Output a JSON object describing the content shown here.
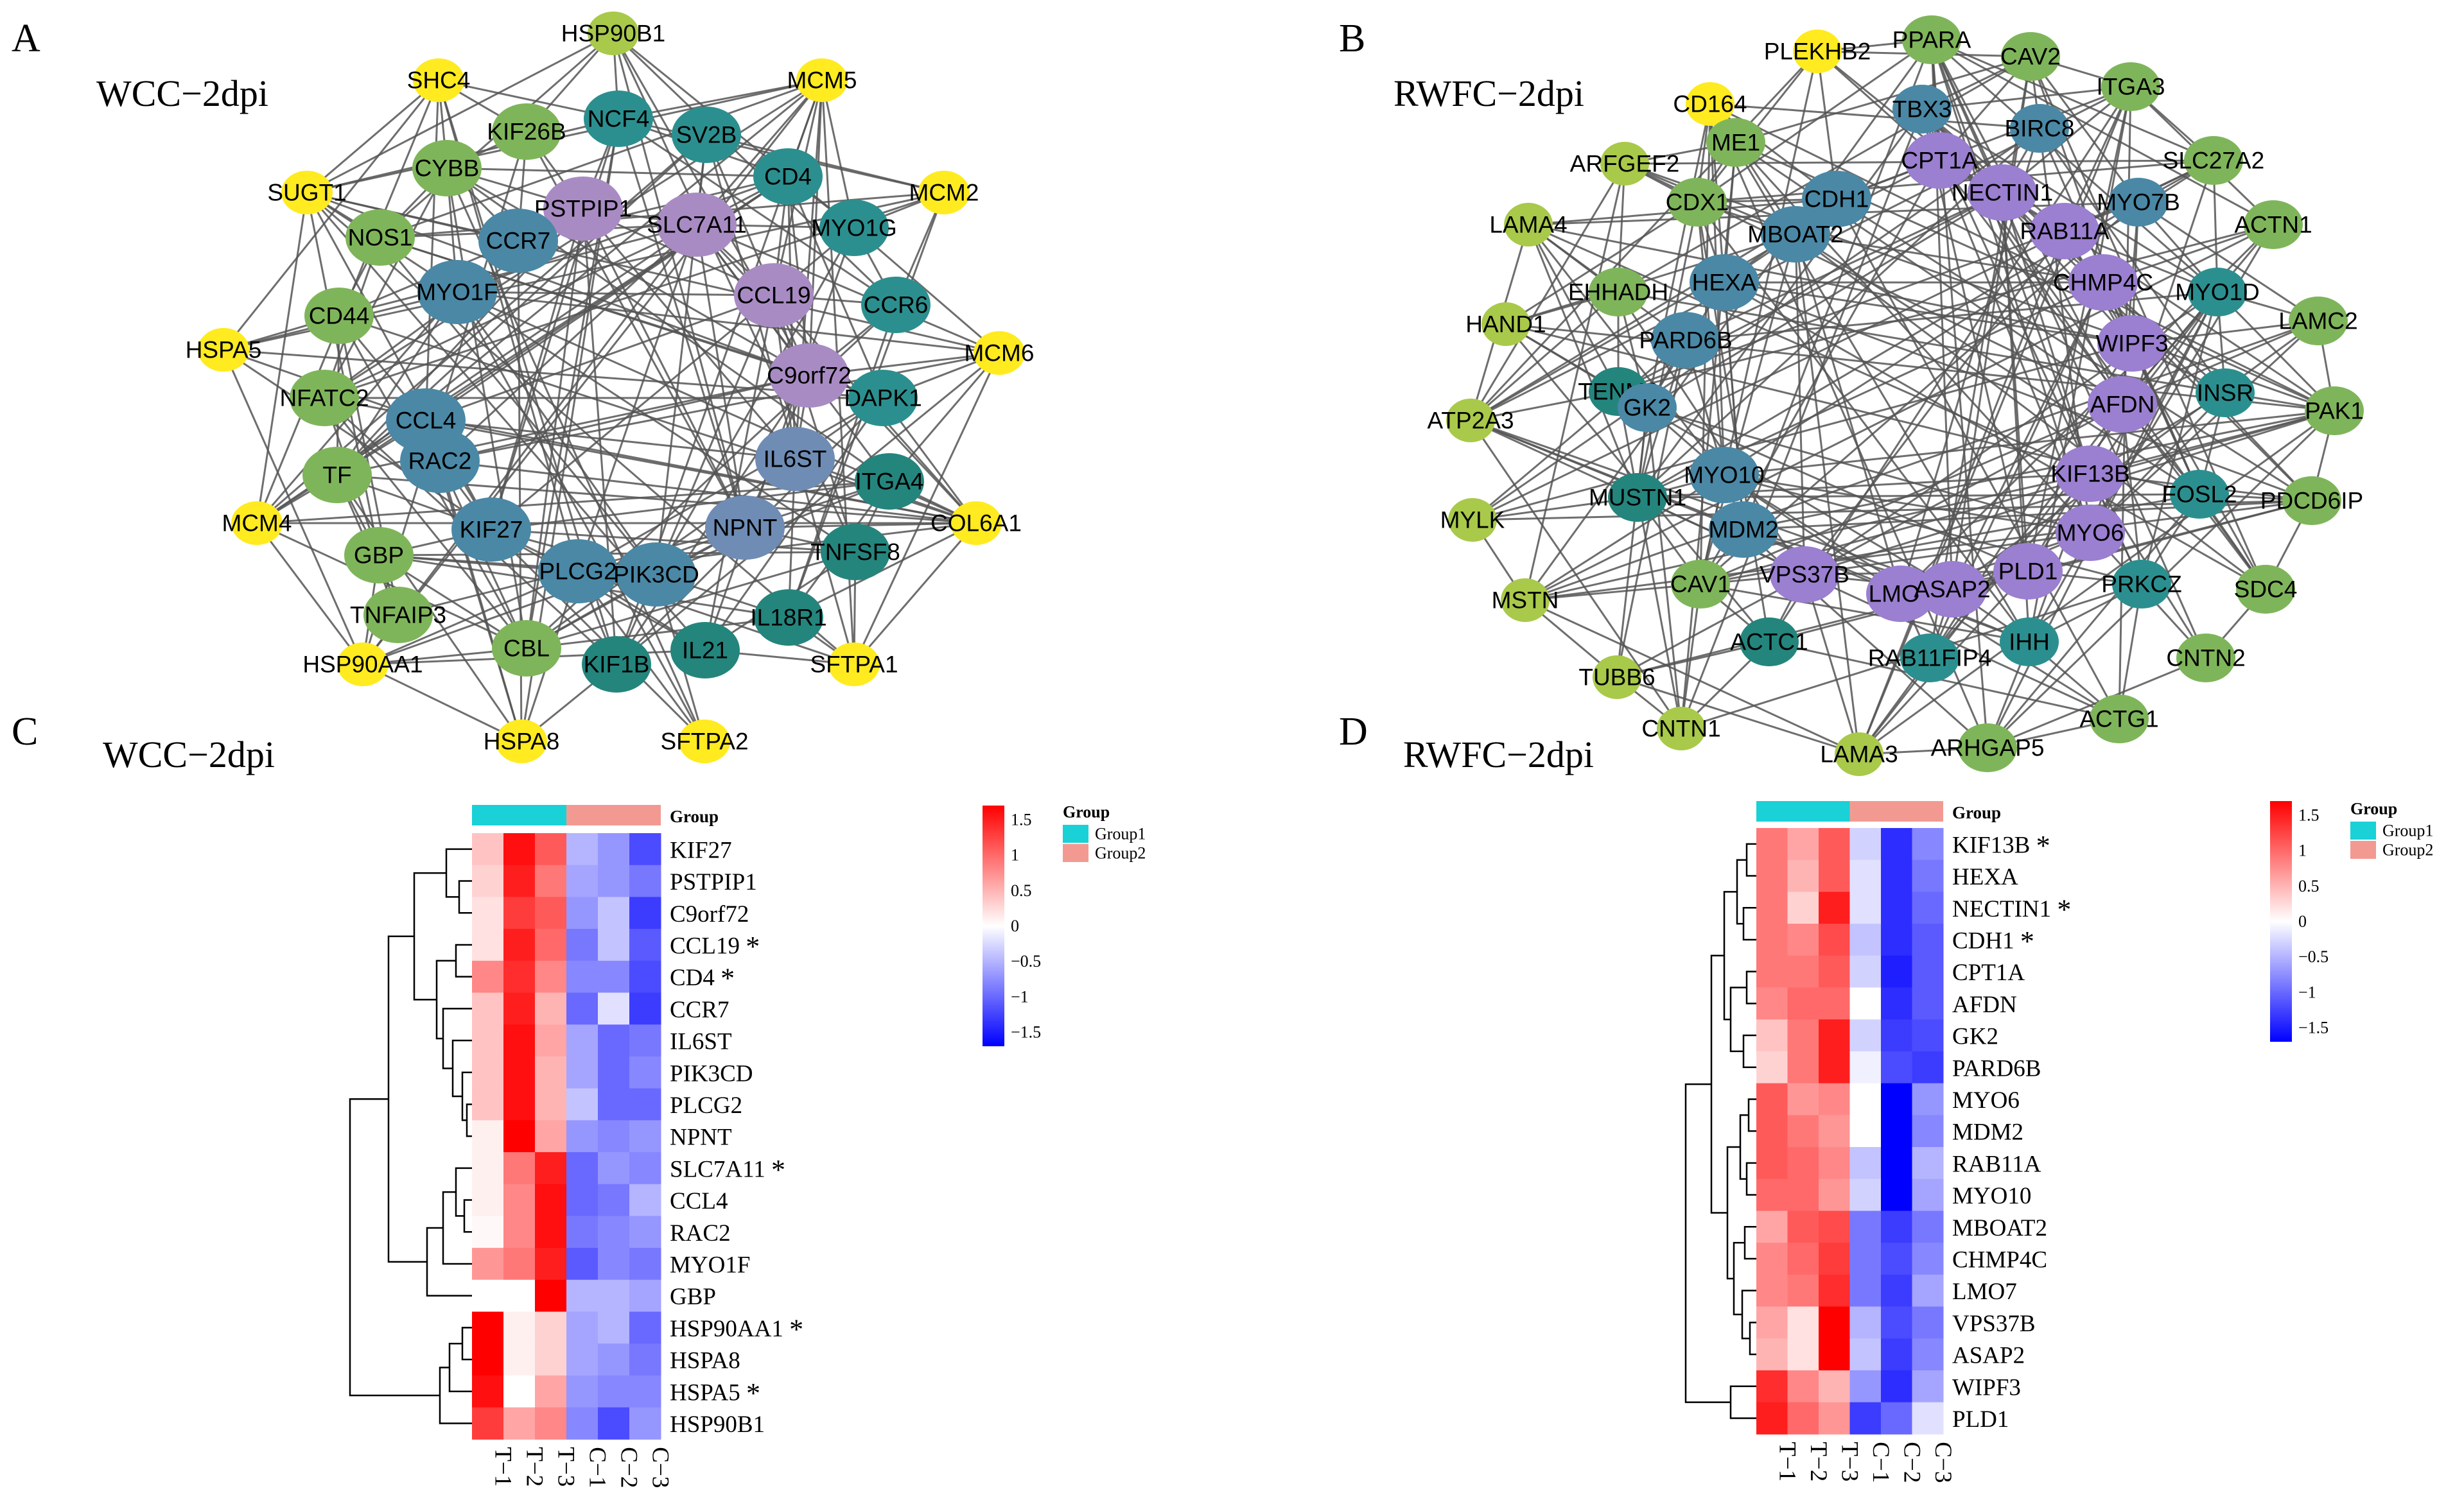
{
  "colors": {
    "yellow": "#ffeb1f",
    "lightgreen": "#7fb55a",
    "olive": "#a9c94a",
    "teal": "#2c8f8f",
    "steelblue": "#4a88a6",
    "slateblue": "#6f8cb4",
    "lavender": "#a98bc4",
    "purple": "#9b7fd1",
    "darkteal": "#24857d",
    "edge": "#555555",
    "group1": "#19d1d6",
    "group2": "#f29a92",
    "hm_high": "#ff0000",
    "hm_mid": "#ffffff",
    "hm_low": "#0000ff"
  },
  "panelA": {
    "letter": "A",
    "title": "WCC−2dpi",
    "nodes": [
      {
        "label": "HSP90B1",
        "c": "olive"
      },
      {
        "label": "SHC4",
        "c": "yellow"
      },
      {
        "label": "MCM5",
        "c": "yellow"
      },
      {
        "label": "KIF26B",
        "c": "lightgreen"
      },
      {
        "label": "NCF4",
        "c": "teal"
      },
      {
        "label": "SV2B",
        "c": "teal"
      },
      {
        "label": "SUGT1",
        "c": "yellow"
      },
      {
        "label": "CYBB",
        "c": "lightgreen"
      },
      {
        "label": "CD4",
        "c": "teal"
      },
      {
        "label": "MCM2",
        "c": "yellow"
      },
      {
        "label": "PSTPIP1",
        "c": "lavender"
      },
      {
        "label": "NOS1",
        "c": "lightgreen"
      },
      {
        "label": "CCR7",
        "c": "steelblue"
      },
      {
        "label": "SLC7A11",
        "c": "lavender"
      },
      {
        "label": "MYO1G",
        "c": "teal"
      },
      {
        "label": "MYO1F",
        "c": "steelblue"
      },
      {
        "label": "CCL19",
        "c": "lavender"
      },
      {
        "label": "CCR6",
        "c": "teal"
      },
      {
        "label": "CD44",
        "c": "lightgreen"
      },
      {
        "label": "HSPA5",
        "c": "yellow"
      },
      {
        "label": "MCM6",
        "c": "yellow"
      },
      {
        "label": "C9orf72",
        "c": "lavender"
      },
      {
        "label": "NFATC2",
        "c": "lightgreen"
      },
      {
        "label": "CCL4",
        "c": "steelblue"
      },
      {
        "label": "DAPK1",
        "c": "teal"
      },
      {
        "label": "IL6ST",
        "c": "slateblue"
      },
      {
        "label": "RAC2",
        "c": "steelblue"
      },
      {
        "label": "TF",
        "c": "lightgreen"
      },
      {
        "label": "ITGA4",
        "c": "darkteal"
      },
      {
        "label": "MCM4",
        "c": "yellow"
      },
      {
        "label": "COL6A1",
        "c": "yellow"
      },
      {
        "label": "NPNT",
        "c": "slateblue"
      },
      {
        "label": "KIF27",
        "c": "steelblue"
      },
      {
        "label": "GBP",
        "c": "lightgreen"
      },
      {
        "label": "TNFSF8",
        "c": "darkteal"
      },
      {
        "label": "PLCG2",
        "c": "steelblue"
      },
      {
        "label": "PIK3CD",
        "c": "steelblue"
      },
      {
        "label": "TNFAIP3",
        "c": "lightgreen"
      },
      {
        "label": "IL18R1",
        "c": "darkteal"
      },
      {
        "label": "CBL",
        "c": "lightgreen"
      },
      {
        "label": "KIF1B",
        "c": "darkteal"
      },
      {
        "label": "IL21",
        "c": "darkteal"
      },
      {
        "label": "HSP90AA1",
        "c": "yellow"
      },
      {
        "label": "SFTPA1",
        "c": "yellow"
      },
      {
        "label": "HSPA8",
        "c": "yellow"
      },
      {
        "label": "SFTPA2",
        "c": "yellow"
      }
    ]
  },
  "panelB": {
    "letter": "B",
    "title": "RWFC−2dpi",
    "nodes": [
      {
        "label": "PPARA",
        "c": "lightgreen"
      },
      {
        "label": "PLEKHB2",
        "c": "yellow"
      },
      {
        "label": "CAV2",
        "c": "lightgreen"
      },
      {
        "label": "CD164",
        "c": "yellow"
      },
      {
        "label": "TBX3",
        "c": "steelblue"
      },
      {
        "label": "ITGA3",
        "c": "lightgreen"
      },
      {
        "label": "BIRC8",
        "c": "steelblue"
      },
      {
        "label": "ARFGEF2",
        "c": "olive"
      },
      {
        "label": "ME1",
        "c": "lightgreen"
      },
      {
        "label": "CPT1A",
        "c": "purple"
      },
      {
        "label": "SLC27A2",
        "c": "lightgreen"
      },
      {
        "label": "NECTIN1",
        "c": "purple"
      },
      {
        "label": "CDX1",
        "c": "lightgreen"
      },
      {
        "label": "CDH1",
        "c": "steelblue"
      },
      {
        "label": "MYO7B",
        "c": "steelblue"
      },
      {
        "label": "LAMA4",
        "c": "olive"
      },
      {
        "label": "MBOAT2",
        "c": "steelblue"
      },
      {
        "label": "RAB11A",
        "c": "purple"
      },
      {
        "label": "ACTN1",
        "c": "lightgreen"
      },
      {
        "label": "CHMP4C",
        "c": "purple"
      },
      {
        "label": "EHHADH",
        "c": "lightgreen"
      },
      {
        "label": "HEXA",
        "c": "steelblue"
      },
      {
        "label": "MYO1D",
        "c": "teal"
      },
      {
        "label": "HAND1",
        "c": "olive"
      },
      {
        "label": "LAMC2",
        "c": "lightgreen"
      },
      {
        "label": "PARD6B",
        "c": "steelblue"
      },
      {
        "label": "WIPF3",
        "c": "purple"
      },
      {
        "label": "TENM2",
        "c": "darkteal"
      },
      {
        "label": "INSR",
        "c": "teal"
      },
      {
        "label": "GK2",
        "c": "steelblue"
      },
      {
        "label": "AFDN",
        "c": "purple"
      },
      {
        "label": "ATP2A3",
        "c": "olive"
      },
      {
        "label": "PAK1",
        "c": "lightgreen"
      },
      {
        "label": "KIF13B",
        "c": "purple"
      },
      {
        "label": "MYO10",
        "c": "steelblue"
      },
      {
        "label": "MUSTN1",
        "c": "darkteal"
      },
      {
        "label": "FOSL2",
        "c": "teal"
      },
      {
        "label": "PDCD6IP",
        "c": "lightgreen"
      },
      {
        "label": "MYLK",
        "c": "olive"
      },
      {
        "label": "MDM2",
        "c": "steelblue"
      },
      {
        "label": "MYO6",
        "c": "purple"
      },
      {
        "label": "VPS37B",
        "c": "purple"
      },
      {
        "label": "PLD1",
        "c": "purple"
      },
      {
        "label": "LMO7",
        "c": "purple"
      },
      {
        "label": "ASAP2",
        "c": "purple"
      },
      {
        "label": "PRKCZ",
        "c": "teal"
      },
      {
        "label": "CAV1",
        "c": "lightgreen"
      },
      {
        "label": "MSTN",
        "c": "olive"
      },
      {
        "label": "SDC4",
        "c": "lightgreen"
      },
      {
        "label": "ACTC1",
        "c": "darkteal"
      },
      {
        "label": "IHH",
        "c": "teal"
      },
      {
        "label": "RAB11FIP4",
        "c": "teal"
      },
      {
        "label": "TUBB6",
        "c": "olive"
      },
      {
        "label": "CNTN2",
        "c": "lightgreen"
      },
      {
        "label": "CNTN1",
        "c": "olive"
      },
      {
        "label": "ACTG1",
        "c": "lightgreen"
      },
      {
        "label": "LAMA3",
        "c": "olive"
      },
      {
        "label": "ARHGAP5",
        "c": "lightgreen"
      }
    ]
  },
  "chart_data": [
    {
      "type": "heatmap",
      "panel": "C",
      "title": "WCC−2dpi",
      "columns": [
        "T−1",
        "T−2",
        "T−3",
        "C−1",
        "C−2",
        "C−3"
      ],
      "column_groups": [
        "Group1",
        "Group1",
        "Group1",
        "Group2",
        "Group2",
        "Group2"
      ],
      "annotation_label": "Group",
      "legend": {
        "title": "Group",
        "entries": [
          "Group1",
          "Group2"
        ]
      },
      "colorbar": {
        "ticks": [
          "1.5",
          "1",
          "0.5",
          "0",
          "−0.5",
          "−1",
          "−1.5"
        ],
        "range": [
          -1.7,
          1.7
        ]
      },
      "rows": [
        {
          "gene": "KIF27",
          "star": "",
          "values": [
            0.4,
            1.6,
            1.1,
            -0.5,
            -0.7,
            -1.2
          ]
        },
        {
          "gene": "PSTPIP1",
          "star": "",
          "values": [
            0.3,
            1.5,
            0.9,
            -0.6,
            -0.7,
            -0.9
          ]
        },
        {
          "gene": "C9orf72",
          "star": "",
          "values": [
            0.2,
            1.3,
            1.1,
            -0.7,
            -0.4,
            -1.3
          ]
        },
        {
          "gene": "CCL19",
          "star": "*",
          "values": [
            0.2,
            1.5,
            1.0,
            -0.9,
            -0.4,
            -1.1
          ]
        },
        {
          "gene": "CD4",
          "star": "*",
          "values": [
            0.8,
            1.4,
            0.8,
            -0.8,
            -0.8,
            -1.2
          ]
        },
        {
          "gene": "CCR7",
          "star": "",
          "values": [
            0.4,
            1.5,
            0.5,
            -1.0,
            -0.2,
            -1.3
          ]
        },
        {
          "gene": "IL6ST",
          "star": "",
          "values": [
            0.4,
            1.6,
            0.6,
            -0.6,
            -1.0,
            -0.9
          ]
        },
        {
          "gene": "PIK3CD",
          "star": "",
          "values": [
            0.4,
            1.6,
            0.5,
            -0.6,
            -1.0,
            -0.8
          ]
        },
        {
          "gene": "PLCG2",
          "star": "",
          "values": [
            0.4,
            1.6,
            0.5,
            -0.4,
            -1.0,
            -1.0
          ]
        },
        {
          "gene": "NPNT",
          "star": "",
          "values": [
            0.1,
            1.7,
            0.6,
            -0.7,
            -0.8,
            -0.7
          ]
        },
        {
          "gene": "SLC7A11",
          "star": "*",
          "values": [
            0.1,
            0.9,
            1.5,
            -1.0,
            -0.7,
            -0.8
          ]
        },
        {
          "gene": "CCL4",
          "star": "",
          "values": [
            0.1,
            0.8,
            1.6,
            -1.0,
            -0.9,
            -0.5
          ]
        },
        {
          "gene": "RAC2",
          "star": "",
          "values": [
            0.05,
            0.8,
            1.6,
            -0.9,
            -0.8,
            -0.7
          ]
        },
        {
          "gene": "MYO1F",
          "star": "",
          "values": [
            0.7,
            0.9,
            1.5,
            -1.1,
            -0.8,
            -0.9
          ]
        },
        {
          "gene": "GBP",
          "star": "",
          "values": [
            0.0,
            0.0,
            1.8,
            -0.5,
            -0.5,
            -0.6
          ]
        },
        {
          "gene": "HSP90AA1",
          "star": "*",
          "values": [
            1.7,
            0.1,
            0.3,
            -0.6,
            -0.5,
            -1.0
          ]
        },
        {
          "gene": "HSPA8",
          "star": "",
          "values": [
            1.7,
            0.1,
            0.3,
            -0.6,
            -0.7,
            -0.9
          ]
        },
        {
          "gene": "HSPA5",
          "star": "*",
          "values": [
            1.6,
            0.0,
            0.6,
            -0.7,
            -0.8,
            -0.8
          ]
        },
        {
          "gene": "HSP90B1",
          "star": "",
          "values": [
            1.3,
            0.6,
            0.8,
            -0.8,
            -1.2,
            -0.7
          ]
        }
      ]
    },
    {
      "type": "heatmap",
      "panel": "D",
      "title": "RWFC−2dpi",
      "columns": [
        "T−1",
        "T−2",
        "T−3",
        "C−1",
        "C−2",
        "C−3"
      ],
      "column_groups": [
        "Group1",
        "Group1",
        "Group1",
        "Group2",
        "Group2",
        "Group2"
      ],
      "annotation_label": "Group",
      "legend": {
        "title": "Group",
        "entries": [
          "Group1",
          "Group2"
        ]
      },
      "colorbar": {
        "ticks": [
          "1.5",
          "1",
          "0.5",
          "0",
          "−0.5",
          "−1",
          "−1.5"
        ],
        "range": [
          -1.7,
          1.7
        ]
      },
      "rows": [
        {
          "gene": "KIF13B",
          "star": "*",
          "values": [
            0.9,
            0.6,
            1.1,
            -0.3,
            -1.4,
            -0.8
          ]
        },
        {
          "gene": "HEXA",
          "star": "",
          "values": [
            0.9,
            0.5,
            1.1,
            -0.2,
            -1.4,
            -0.9
          ]
        },
        {
          "gene": "NECTIN1",
          "star": "*",
          "values": [
            0.9,
            0.3,
            1.5,
            -0.2,
            -1.4,
            -1.0
          ]
        },
        {
          "gene": "CDH1",
          "star": "*",
          "values": [
            0.9,
            0.8,
            1.2,
            -0.4,
            -1.4,
            -1.1
          ]
        },
        {
          "gene": "CPT1A",
          "star": "",
          "values": [
            0.9,
            0.9,
            1.1,
            -0.3,
            -1.5,
            -1.1
          ]
        },
        {
          "gene": "AFDN",
          "star": "",
          "values": [
            0.8,
            1.0,
            1.0,
            0.0,
            -1.4,
            -1.1
          ]
        },
        {
          "gene": "GK2",
          "star": "",
          "values": [
            0.4,
            0.9,
            1.5,
            -0.3,
            -1.3,
            -1.2
          ]
        },
        {
          "gene": "PARD6B",
          "star": "",
          "values": [
            0.3,
            0.9,
            1.5,
            -0.1,
            -1.2,
            -1.3
          ]
        },
        {
          "gene": "MYO6",
          "star": "",
          "values": [
            1.1,
            0.7,
            0.8,
            0.0,
            -1.8,
            -0.7
          ]
        },
        {
          "gene": "MDM2",
          "star": "",
          "values": [
            1.1,
            0.9,
            0.7,
            0.0,
            -1.8,
            -0.8
          ]
        },
        {
          "gene": "RAB11A",
          "star": "",
          "values": [
            1.1,
            1.0,
            0.8,
            -0.4,
            -1.8,
            -0.5
          ]
        },
        {
          "gene": "MYO10",
          "star": "",
          "values": [
            1.0,
            1.0,
            0.7,
            -0.3,
            -1.8,
            -0.6
          ]
        },
        {
          "gene": "MBOAT2",
          "star": "",
          "values": [
            0.6,
            1.1,
            1.2,
            -0.9,
            -1.3,
            -0.9
          ]
        },
        {
          "gene": "CHMP4C",
          "star": "",
          "values": [
            0.8,
            1.0,
            1.3,
            -0.9,
            -1.2,
            -0.8
          ]
        },
        {
          "gene": "LMO7",
          "star": "",
          "values": [
            0.8,
            0.9,
            1.4,
            -0.9,
            -1.3,
            -0.6
          ]
        },
        {
          "gene": "VPS37B",
          "star": "",
          "values": [
            0.6,
            0.2,
            1.8,
            -0.5,
            -1.2,
            -0.9
          ]
        },
        {
          "gene": "ASAP2",
          "star": "",
          "values": [
            0.5,
            0.2,
            1.8,
            -0.4,
            -1.3,
            -0.8
          ]
        },
        {
          "gene": "WIPF3",
          "star": "",
          "values": [
            1.4,
            0.8,
            0.5,
            -0.7,
            -1.4,
            -0.6
          ]
        },
        {
          "gene": "PLD1",
          "star": "",
          "values": [
            1.5,
            1.0,
            0.7,
            -1.3,
            -1.0,
            -0.2
          ]
        }
      ]
    }
  ]
}
